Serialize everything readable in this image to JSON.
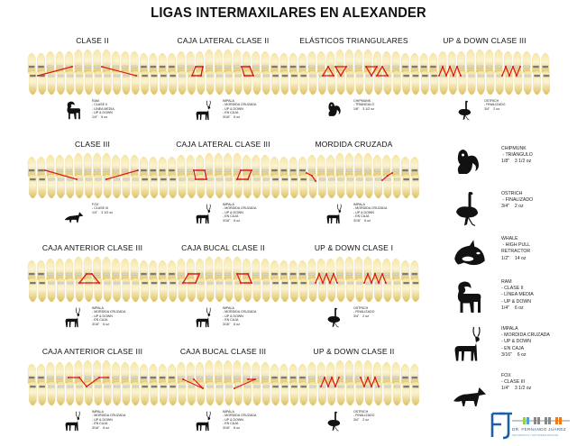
{
  "title": "LIGAS INTERMAXILARES EN ALEXANDER",
  "colors": {
    "tooth_light": "#fbf0c4",
    "tooth_dark": "#e0c362",
    "elastic_red": "#e01818",
    "logo_blue": "#1c5fa8",
    "bracket_grey": "#9a9a9a"
  },
  "panels": [
    {
      "id": "clase-ii",
      "title": "CLASE II",
      "animal": "ram",
      "info": "RAM\n- CLASE II\n- LÍNEA MEDIA\n- UP & DOWN\n1/4\"    6 oz",
      "pattern": "class2"
    },
    {
      "id": "caja-lateral-clase-ii",
      "title": "CAJA LATERAL CLASE II",
      "animal": "impala",
      "info": "IMPALA\n- MORDIDA CRUZADA\n- UP & DOWN\n- EN CAJA\n3/16\"    6 oz",
      "pattern": "box-lateral-2"
    },
    {
      "id": "elasticos-triangulares",
      "title": "ELÁSTICOS TRIANGULARES",
      "animal": "chipmunk",
      "info": "CHIPMUNK\n- TRIÁNGULO\n1/8\"    3 1/2 oz",
      "pattern": "triangles"
    },
    {
      "id": "up-down-clase-iii",
      "title": "UP & DOWN CLASE III",
      "animal": "ostrich",
      "info": "OSTRICH\n- FINALIZADO\n3/4\"    2 oz",
      "pattern": "zigzag-3"
    },
    {
      "id": "clase-iii",
      "title": "CLASE III",
      "animal": "fox",
      "info": "FOX\n- CLASE III\n1/4\"    3 1/2 oz",
      "pattern": "class3"
    },
    {
      "id": "caja-lateral-clase-iii",
      "title": "CAJA LATERAL CLASE III",
      "animal": "impala",
      "info": "IMPALA\n- MORDIDA CRUZADA\n- UP & DOWN\n- EN CAJA\n3/16\"    6 oz",
      "pattern": "box-lateral-3"
    },
    {
      "id": "mordida-cruzada",
      "title": "MORDIDA CRUZADA",
      "animal": "impala",
      "info": "IMPALA\n- MORDIDA CRUZADA\n- UP & DOWN\n- EN CAJA\n3/16\"    6 oz",
      "pattern": "crossbite"
    },
    {
      "id": "caja-anterior-clase-iii-a",
      "title": "CAJA ANTERIOR CLASE III",
      "animal": "impala",
      "info": "IMPALA\n- MORDIDA CRUZADA\n- UP & DOWN\n- EN CAJA\n3/16\"    6 oz",
      "pattern": "anterior-trap"
    },
    {
      "id": "caja-bucal-clase-ii",
      "title": "CAJA BUCAL CLASE II",
      "animal": "impala",
      "info": "IMPALA\n- MORDIDA CRUZADA\n- UP & DOWN\n- EN CAJA\n3/16\"    6 oz",
      "pattern": "buccal-2"
    },
    {
      "id": "up-down-clase-i",
      "title": "UP & DOWN CLASE I",
      "animal": "ostrich",
      "info": "OSTRICH\n- FINALIZADO\n3/4\"    2 oz",
      "pattern": "zigzag-1"
    },
    {
      "id": "caja-anterior-clase-iii-b",
      "title": "CAJA ANTERIOR CLASE III",
      "animal": "impala",
      "info": "IMPALA\n- MORDIDA CRUZADA\n- UP & DOWN\n- EN CAJA\n3/16\"    6 oz",
      "pattern": "anterior-v"
    },
    {
      "id": "caja-bucal-clase-iii",
      "title": "CAJA BUCAL CLASE III",
      "animal": "impala",
      "info": "IMPALA\n- MORDIDA CRUZADA\n- UP & DOWN\n- EN CAJA\n3/16\"    6 oz",
      "pattern": "buccal-3"
    },
    {
      "id": "up-down-clase-ii",
      "title": "UP & DOWN CLASE II",
      "animal": "ostrich",
      "info": "OSTRICH\n- FINALIZADO\n3/4\"    2 oz",
      "pattern": "zigzag-2"
    }
  ],
  "legend": [
    {
      "animal": "chipmunk",
      "text": "CHIPMUNK\n - TRIÁNGULO\n1/8\"    3 1/2 oz"
    },
    {
      "animal": "ostrich",
      "text": "OSTRICH\n - FINALIZADO\n3/4\"    2 oz"
    },
    {
      "animal": "whale",
      "text": "WHALE\n - HIGH PULL\nRETRACTOR\n1/2\"    14 oz"
    },
    {
      "animal": "ram",
      "text": "RAM\n- CLASE II\n- LÍNEA MEDIA\n- UP & DOWN\n1/4\"    6 oz"
    },
    {
      "animal": "impala",
      "text": "IMPALA\n- MORDIDA CRUZADA\n- UP & DOWN\n- EN CAJA\n3/16\"    6 oz"
    },
    {
      "animal": "fox",
      "text": "FOX\n- CLASE III\n1/4\"    3 1/2 oz"
    }
  ],
  "logo": {
    "initials": "FJ",
    "name": "DR. FERNANDO JUÁREZ",
    "subtitle": "ORTODONCIA Y ORTOPEDIA MAXILAR"
  }
}
